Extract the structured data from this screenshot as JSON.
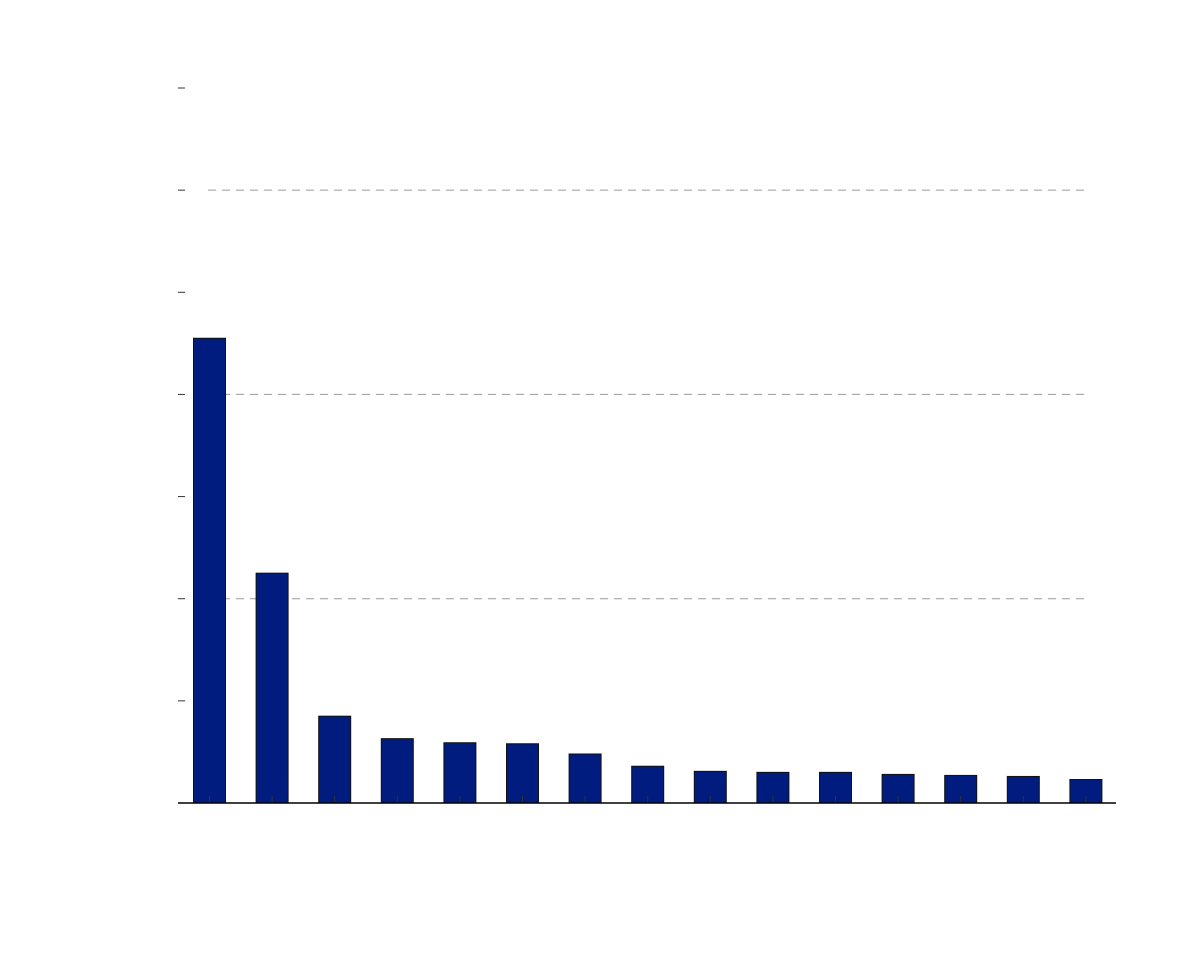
{
  "chart_data": {
    "type": "bar",
    "title": "",
    "xlabel": "",
    "ylabel": "",
    "categories": [
      "",
      "",
      "",
      "",
      "",
      "",
      "",
      "",
      "",
      "",
      "",
      "",
      "",
      "",
      ""
    ],
    "values": [
      4.55,
      2.25,
      0.85,
      0.63,
      0.59,
      0.58,
      0.48,
      0.36,
      0.31,
      0.3,
      0.3,
      0.28,
      0.27,
      0.26,
      0.23
    ],
    "ylim": [
      0,
      7
    ],
    "yticks": [
      0,
      1,
      2,
      3,
      4,
      5,
      6,
      7
    ],
    "grid_lines_at": [
      2,
      4,
      6
    ],
    "grid": true,
    "legend": false,
    "colors": {
      "bar": "#001c7f",
      "bar_edge": "#111111",
      "grid": "#9a9a9a"
    }
  }
}
